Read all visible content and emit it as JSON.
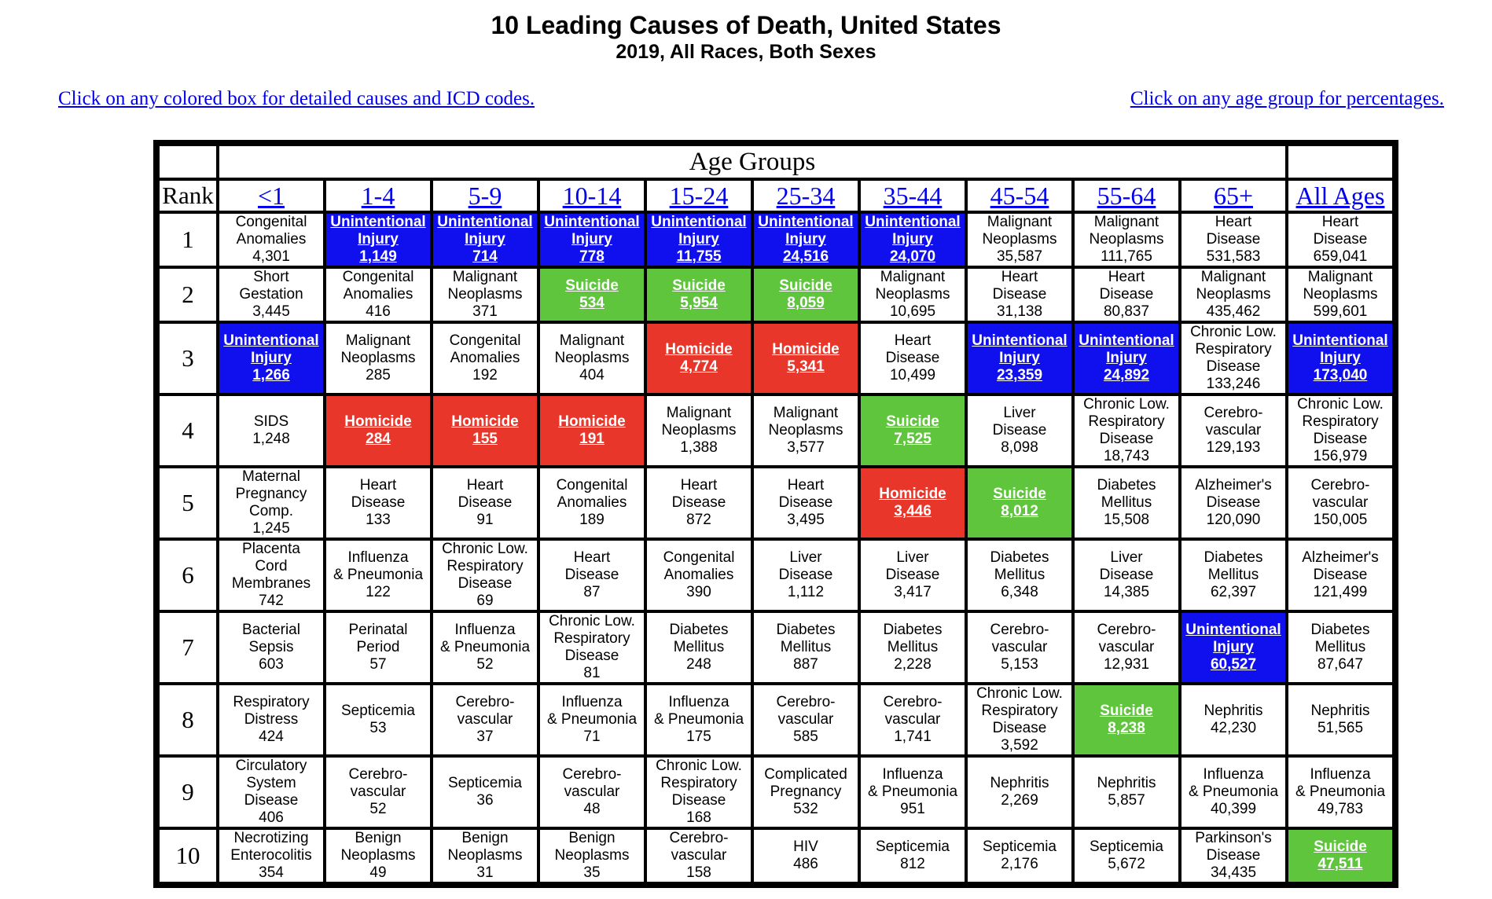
{
  "page": {
    "title": "10 Leading Causes of Death, United States",
    "subtitle": "2019, All Races, Both Sexes",
    "link_left": "Click on any colored box for detailed causes and ICD codes.",
    "link_right": "Click on any age group for percentages."
  },
  "table": {
    "age_groups_header": "Age Groups",
    "rank_header": "Rank",
    "age_groups": [
      "<1",
      "1-4",
      "5-9",
      "10-14",
      "15-24",
      "25-34",
      "35-44",
      "45-54",
      "55-64",
      "65+",
      "All Ages"
    ],
    "colors": {
      "unintentional_injury": "#1010ee",
      "homicide": "#e8362a",
      "suicide": "#5fc53d"
    },
    "rows": [
      {
        "rank": "1",
        "cells": [
          {
            "label": "Congenital\nAnomalies",
            "count": "4,301",
            "color": "none"
          },
          {
            "label": "Unintentional\nInjury",
            "count": "1,149",
            "color": "blue"
          },
          {
            "label": "Unintentional\nInjury",
            "count": "714",
            "color": "blue"
          },
          {
            "label": "Unintentional\nInjury",
            "count": "778",
            "color": "blue"
          },
          {
            "label": "Unintentional\nInjury",
            "count": "11,755",
            "color": "blue"
          },
          {
            "label": "Unintentional\nInjury",
            "count": "24,516",
            "color": "blue"
          },
          {
            "label": "Unintentional\nInjury",
            "count": "24,070",
            "color": "blue"
          },
          {
            "label": "Malignant\nNeoplasms",
            "count": "35,587",
            "color": "none"
          },
          {
            "label": "Malignant\nNeoplasms",
            "count": "111,765",
            "color": "none"
          },
          {
            "label": "Heart\nDisease",
            "count": "531,583",
            "color": "none"
          },
          {
            "label": "Heart\nDisease",
            "count": "659,041",
            "color": "none"
          }
        ]
      },
      {
        "rank": "2",
        "cells": [
          {
            "label": "Short\nGestation",
            "count": "3,445",
            "color": "none"
          },
          {
            "label": "Congenital\nAnomalies",
            "count": "416",
            "color": "none"
          },
          {
            "label": "Malignant\nNeoplasms",
            "count": "371",
            "color": "none"
          },
          {
            "label": "Suicide",
            "count": "534",
            "color": "green"
          },
          {
            "label": "Suicide",
            "count": "5,954",
            "color": "green"
          },
          {
            "label": "Suicide",
            "count": "8,059",
            "color": "green"
          },
          {
            "label": "Malignant\nNeoplasms",
            "count": "10,695",
            "color": "none"
          },
          {
            "label": "Heart\nDisease",
            "count": "31,138",
            "color": "none"
          },
          {
            "label": "Heart\nDisease",
            "count": "80,837",
            "color": "none"
          },
          {
            "label": "Malignant\nNeoplasms",
            "count": "435,462",
            "color": "none"
          },
          {
            "label": "Malignant\nNeoplasms",
            "count": "599,601",
            "color": "none"
          }
        ]
      },
      {
        "rank": "3",
        "cells": [
          {
            "label": "Unintentional\nInjury",
            "count": "1,266",
            "color": "blue"
          },
          {
            "label": "Malignant\nNeoplasms",
            "count": "285",
            "color": "none"
          },
          {
            "label": "Congenital\nAnomalies",
            "count": "192",
            "color": "none"
          },
          {
            "label": "Malignant\nNeoplasms",
            "count": "404",
            "color": "none"
          },
          {
            "label": "Homicide",
            "count": "4,774",
            "color": "red"
          },
          {
            "label": "Homicide",
            "count": "5,341",
            "color": "red"
          },
          {
            "label": "Heart\nDisease",
            "count": "10,499",
            "color": "none"
          },
          {
            "label": "Unintentional\nInjury",
            "count": "23,359",
            "color": "blue"
          },
          {
            "label": "Unintentional\nInjury",
            "count": "24,892",
            "color": "blue"
          },
          {
            "label": "Chronic Low.\nRespiratory\nDisease",
            "count": "133,246",
            "color": "none"
          },
          {
            "label": "Unintentional\nInjury",
            "count": "173,040",
            "color": "blue"
          }
        ]
      },
      {
        "rank": "4",
        "cells": [
          {
            "label": "SIDS",
            "count": "1,248",
            "color": "none"
          },
          {
            "label": "Homicide",
            "count": "284",
            "color": "red"
          },
          {
            "label": "Homicide",
            "count": "155",
            "color": "red"
          },
          {
            "label": "Homicide",
            "count": "191",
            "color": "red"
          },
          {
            "label": "Malignant\nNeoplasms",
            "count": "1,388",
            "color": "none"
          },
          {
            "label": "Malignant\nNeoplasms",
            "count": "3,577",
            "color": "none"
          },
          {
            "label": "Suicide",
            "count": "7,525",
            "color": "green"
          },
          {
            "label": "Liver\nDisease",
            "count": "8,098",
            "color": "none"
          },
          {
            "label": "Chronic Low.\nRespiratory\nDisease",
            "count": "18,743",
            "color": "none"
          },
          {
            "label": "Cerebro-\nvascular",
            "count": "129,193",
            "color": "none"
          },
          {
            "label": "Chronic Low.\nRespiratory\nDisease",
            "count": "156,979",
            "color": "none"
          }
        ]
      },
      {
        "rank": "5",
        "cells": [
          {
            "label": "Maternal\nPregnancy\nComp.",
            "count": "1,245",
            "color": "none"
          },
          {
            "label": "Heart\nDisease",
            "count": "133",
            "color": "none"
          },
          {
            "label": "Heart\nDisease",
            "count": "91",
            "color": "none"
          },
          {
            "label": "Congenital\nAnomalies",
            "count": "189",
            "color": "none"
          },
          {
            "label": "Heart\nDisease",
            "count": "872",
            "color": "none"
          },
          {
            "label": "Heart\nDisease",
            "count": "3,495",
            "color": "none"
          },
          {
            "label": "Homicide",
            "count": "3,446",
            "color": "red"
          },
          {
            "label": "Suicide",
            "count": "8,012",
            "color": "green"
          },
          {
            "label": "Diabetes\nMellitus",
            "count": "15,508",
            "color": "none"
          },
          {
            "label": "Alzheimer's\nDisease",
            "count": "120,090",
            "color": "none"
          },
          {
            "label": "Cerebro-\nvascular",
            "count": "150,005",
            "color": "none"
          }
        ]
      },
      {
        "rank": "6",
        "cells": [
          {
            "label": "Placenta\nCord\nMembranes",
            "count": "742",
            "color": "none"
          },
          {
            "label": "Influenza\n& Pneumonia",
            "count": "122",
            "color": "none"
          },
          {
            "label": "Chronic Low.\nRespiratory\nDisease",
            "count": "69",
            "color": "none"
          },
          {
            "label": "Heart\nDisease",
            "count": "87",
            "color": "none"
          },
          {
            "label": "Congenital\nAnomalies",
            "count": "390",
            "color": "none"
          },
          {
            "label": "Liver\nDisease",
            "count": "1,112",
            "color": "none"
          },
          {
            "label": "Liver\nDisease",
            "count": "3,417",
            "color": "none"
          },
          {
            "label": "Diabetes\nMellitus",
            "count": "6,348",
            "color": "none"
          },
          {
            "label": "Liver\nDisease",
            "count": "14,385",
            "color": "none"
          },
          {
            "label": "Diabetes\nMellitus",
            "count": "62,397",
            "color": "none"
          },
          {
            "label": "Alzheimer's\nDisease",
            "count": "121,499",
            "color": "none"
          }
        ]
      },
      {
        "rank": "7",
        "cells": [
          {
            "label": "Bacterial\nSepsis",
            "count": "603",
            "color": "none"
          },
          {
            "label": "Perinatal\nPeriod",
            "count": "57",
            "color": "none"
          },
          {
            "label": "Influenza\n& Pneumonia",
            "count": "52",
            "color": "none"
          },
          {
            "label": "Chronic Low.\nRespiratory\nDisease",
            "count": "81",
            "color": "none"
          },
          {
            "label": "Diabetes\nMellitus",
            "count": "248",
            "color": "none"
          },
          {
            "label": "Diabetes\nMellitus",
            "count": "887",
            "color": "none"
          },
          {
            "label": "Diabetes\nMellitus",
            "count": "2,228",
            "color": "none"
          },
          {
            "label": "Cerebro-\nvascular",
            "count": "5,153",
            "color": "none"
          },
          {
            "label": "Cerebro-\nvascular",
            "count": "12,931",
            "color": "none"
          },
          {
            "label": "Unintentional\nInjury",
            "count": "60,527",
            "color": "blue"
          },
          {
            "label": "Diabetes\nMellitus",
            "count": "87,647",
            "color": "none"
          }
        ]
      },
      {
        "rank": "8",
        "cells": [
          {
            "label": "Respiratory\nDistress",
            "count": "424",
            "color": "none"
          },
          {
            "label": "Septicemia",
            "count": "53",
            "color": "none"
          },
          {
            "label": "Cerebro-\nvascular",
            "count": "37",
            "color": "none"
          },
          {
            "label": "Influenza\n& Pneumonia",
            "count": "71",
            "color": "none"
          },
          {
            "label": "Influenza\n& Pneumonia",
            "count": "175",
            "color": "none"
          },
          {
            "label": "Cerebro-\nvascular",
            "count": "585",
            "color": "none"
          },
          {
            "label": "Cerebro-\nvascular",
            "count": "1,741",
            "color": "none"
          },
          {
            "label": "Chronic Low.\nRespiratory\nDisease",
            "count": "3,592",
            "color": "none"
          },
          {
            "label": "Suicide",
            "count": "8,238",
            "color": "green"
          },
          {
            "label": "Nephritis",
            "count": "42,230",
            "color": "none"
          },
          {
            "label": "Nephritis",
            "count": "51,565",
            "color": "none"
          }
        ]
      },
      {
        "rank": "9",
        "cells": [
          {
            "label": "Circulatory\nSystem\nDisease",
            "count": "406",
            "color": "none"
          },
          {
            "label": "Cerebro-\nvascular",
            "count": "52",
            "color": "none"
          },
          {
            "label": "Septicemia",
            "count": "36",
            "color": "none"
          },
          {
            "label": "Cerebro-\nvascular",
            "count": "48",
            "color": "none"
          },
          {
            "label": "Chronic Low.\nRespiratory\nDisease",
            "count": "168",
            "color": "none"
          },
          {
            "label": "Complicated\nPregnancy",
            "count": "532",
            "color": "none"
          },
          {
            "label": "Influenza\n& Pneumonia",
            "count": "951",
            "color": "none"
          },
          {
            "label": "Nephritis",
            "count": "2,269",
            "color": "none"
          },
          {
            "label": "Nephritis",
            "count": "5,857",
            "color": "none"
          },
          {
            "label": "Influenza\n& Pneumonia",
            "count": "40,399",
            "color": "none"
          },
          {
            "label": "Influenza\n& Pneumonia",
            "count": "49,783",
            "color": "none"
          }
        ]
      },
      {
        "rank": "10",
        "cells": [
          {
            "label": "Necrotizing\nEnterocolitis",
            "count": "354",
            "color": "none"
          },
          {
            "label": "Benign\nNeoplasms",
            "count": "49",
            "color": "none"
          },
          {
            "label": "Benign\nNeoplasms",
            "count": "31",
            "color": "none"
          },
          {
            "label": "Benign\nNeoplasms",
            "count": "35",
            "color": "none"
          },
          {
            "label": "Cerebro-\nvascular",
            "count": "158",
            "color": "none"
          },
          {
            "label": "HIV",
            "count": "486",
            "color": "none"
          },
          {
            "label": "Septicemia",
            "count": "812",
            "color": "none"
          },
          {
            "label": "Septicemia",
            "count": "2,176",
            "color": "none"
          },
          {
            "label": "Septicemia",
            "count": "5,672",
            "color": "none"
          },
          {
            "label": "Parkinson's\nDisease",
            "count": "34,435",
            "color": "none"
          },
          {
            "label": "Suicide",
            "count": "47,511",
            "color": "green"
          }
        ]
      }
    ]
  }
}
